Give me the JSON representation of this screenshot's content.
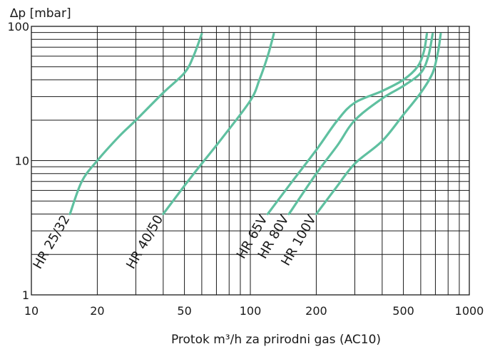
{
  "chart_data": {
    "type": "line",
    "title": "",
    "xlabel": "Protok m³/h za prirodni gas (AC10)",
    "ylabel": "∆p [mbar]",
    "x_scale": "log",
    "y_scale": "log",
    "xlim": [
      10,
      1000
    ],
    "ylim": [
      1,
      100
    ],
    "grid": true,
    "x_ticks": [
      10,
      20,
      50,
      100,
      200,
      500,
      1000
    ],
    "x_tick_labels": [
      "10",
      "20",
      "50",
      "100",
      "200",
      "500",
      "1000"
    ],
    "y_ticks": [
      1,
      10,
      100
    ],
    "y_tick_labels": [
      "1",
      "10",
      "100"
    ],
    "line_color": "#5fc0a0",
    "series": [
      {
        "name": "HR 25/32",
        "x": [
          15,
          17,
          20,
          25,
          30,
          40,
          50,
          55,
          60
        ],
        "y": [
          4,
          7,
          10,
          15,
          20,
          32,
          45,
          60,
          88
        ]
      },
      {
        "name": "HR 40/50",
        "x": [
          40,
          50,
          60,
          75,
          100,
          110,
          120,
          128
        ],
        "y": [
          4,
          6.5,
          9.5,
          15,
          28,
          40,
          60,
          88
        ]
      },
      {
        "name": "HR 65V",
        "x": [
          120,
          150,
          200,
          250,
          300,
          400,
          500,
          580,
          620,
          640
        ],
        "y": [
          4,
          6.5,
          12,
          20,
          27,
          33,
          40,
          50,
          65,
          88
        ]
      },
      {
        "name": "HR 80V",
        "x": [
          150,
          200,
          250,
          300,
          400,
          500,
          600,
          650,
          680
        ],
        "y": [
          4,
          8,
          13,
          20,
          29,
          36,
          45,
          60,
          88
        ]
      },
      {
        "name": "HR 100V",
        "x": [
          200,
          250,
          300,
          400,
          500,
          600,
          680,
          720,
          740
        ],
        "y": [
          4,
          6.5,
          9.5,
          14,
          22,
          32,
          45,
          65,
          88
        ]
      }
    ]
  }
}
